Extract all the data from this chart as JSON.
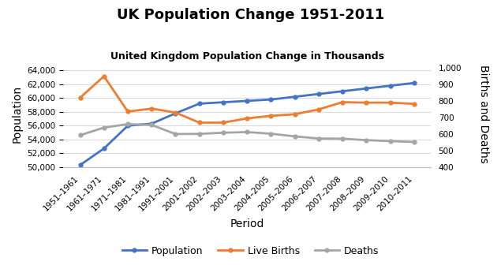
{
  "title": "UK Population Change 1951-2011",
  "subtitle": "United Kingdom Population Change in Thousands",
  "xlabel": "Period",
  "ylabel_left": "Population",
  "ylabel_right": "Births and Deaths",
  "categories": [
    "1951–1961",
    "1961–1971",
    "1971–1981",
    "1981–1991",
    "1991–2001",
    "2001–2002",
    "2002–2003",
    "2003–2004",
    "2004–2005",
    "2005–2006",
    "2006–2007",
    "2007–2008",
    "2008–2009",
    "2009–2010",
    "2010–2011"
  ],
  "population": [
    50300,
    52700,
    56000,
    56300,
    57800,
    59200,
    59400,
    59600,
    59800,
    60200,
    60600,
    61000,
    61400,
    61800,
    62200
  ],
  "live_births": [
    820,
    950,
    736,
    754,
    730,
    669,
    669,
    695,
    710,
    720,
    749,
    793,
    790,
    790,
    783
  ],
  "deaths": [
    593,
    639,
    660,
    655,
    600,
    601,
    608,
    612,
    602,
    586,
    573,
    572,
    563,
    557,
    552
  ],
  "population_color": "#4472C4",
  "births_color": "#ED7D31",
  "deaths_color": "#A5A5A5",
  "left_ylim": [
    50000,
    65333
  ],
  "left_yticks": [
    50000,
    52000,
    54000,
    56000,
    58000,
    60000,
    62000,
    64000
  ],
  "right_ylim": [
    400,
    1040
  ],
  "right_yticks": [
    400,
    500,
    600,
    700,
    800,
    900,
    1000
  ],
  "background_color": "#FFFFFF",
  "grid_color": "#D9D9D9",
  "legend_labels": [
    "Population",
    "Live Births",
    "Deaths"
  ],
  "title_fontsize": 13,
  "subtitle_fontsize": 9,
  "axis_label_fontsize": 10,
  "tick_fontsize": 7.5
}
